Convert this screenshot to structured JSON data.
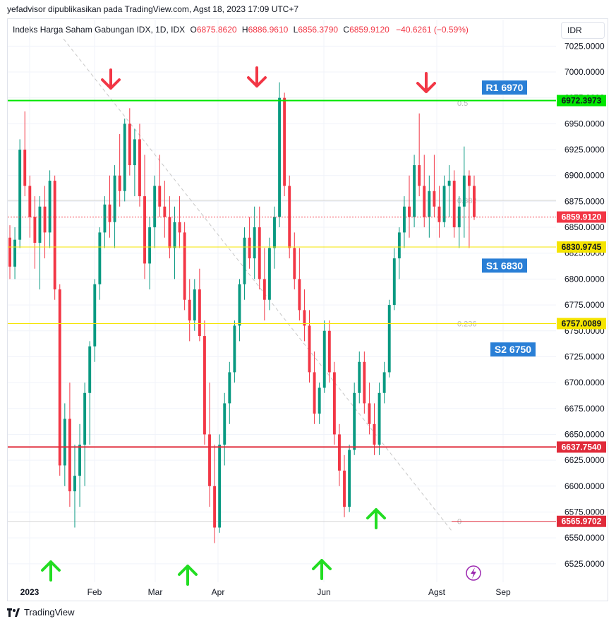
{
  "publisher": "yefadvisor dipublikasikan pada TradingView.com, Agst 18, 2023 17:09 UTC+7",
  "legend": {
    "symbol": "Indeks Harga Saham Gabungan IDX, 1D, IDX",
    "o_label": "O",
    "o_value": "6875.8620",
    "h_label": "H",
    "h_value": "6886.9610",
    "l_label": "L",
    "l_value": "6856.3790",
    "c_label": "C",
    "c_value": "6859.9120",
    "change": "−40.6261 (−0.59%)"
  },
  "currency": "IDR",
  "footer_brand": "TradingView",
  "colors": {
    "up": "#089981",
    "down": "#f23645",
    "green_line": "#00e600",
    "yellow_line": "#f5e400",
    "red_line": "#e02b3a",
    "label_blue": "#2a7fd6",
    "arrow_red": "#f23645",
    "arrow_green": "#22dd22"
  },
  "chart_data": {
    "type": "candlestick",
    "y_axis": {
      "ylim": [
        6510,
        7045
      ],
      "ticks": [
        "7025.0000",
        "7000.0000",
        "6975.0000",
        "6950.0000",
        "6925.0000",
        "6900.0000",
        "6875.0000",
        "6850.0000",
        "6825.0000",
        "6800.0000",
        "6775.0000",
        "6750.0000",
        "6725.0000",
        "6700.0000",
        "6675.0000",
        "6650.0000",
        "6625.0000",
        "6600.0000",
        "6575.0000",
        "6550.0000",
        "6525.0000"
      ]
    },
    "x_axis": {
      "ticks": [
        "2023",
        "Feb",
        "Mar",
        "Apr",
        "Jun",
        "Agst",
        "Sep"
      ]
    },
    "horizontal_lines": [
      {
        "name": "resistance",
        "value": 6972.3973,
        "label": "6972.3973",
        "color": "#00e600"
      },
      {
        "name": "current",
        "value": 6859.912,
        "label": "6859.9120",
        "color": "#f23645"
      },
      {
        "name": "support-1",
        "value": 6830.9745,
        "label": "6830.9745",
        "color": "#f5e400"
      },
      {
        "name": "support-2",
        "value": 6757.0089,
        "label": "6757.0089",
        "color": "#f5e400"
      },
      {
        "name": "support-3",
        "value": 6637.754,
        "label": "6637.7540",
        "color": "#e02b3a"
      },
      {
        "name": "fib-base",
        "value": 6565.9702,
        "label": "6565.9702",
        "color": "#e02b3a"
      }
    ],
    "fib_labels": [
      "0.5",
      "0.382",
      "0.236",
      "0"
    ],
    "annotations": [
      "R1 6970",
      "S1 6830",
      "S2 6750"
    ],
    "candles": [
      [
        6840,
        6852,
        6800,
        6812
      ],
      [
        6812,
        6850,
        6800,
        6838
      ],
      [
        6838,
        6935,
        6830,
        6925
      ],
      [
        6925,
        6962,
        6880,
        6890
      ],
      [
        6890,
        6900,
        6840,
        6860
      ],
      [
        6860,
        6880,
        6810,
        6835
      ],
      [
        6835,
        6880,
        6790,
        6870
      ],
      [
        6870,
        6890,
        6820,
        6845
      ],
      [
        6845,
        6905,
        6830,
        6895
      ],
      [
        6895,
        6900,
        6780,
        6790
      ],
      [
        6790,
        6795,
        6610,
        6620
      ],
      [
        6620,
        6680,
        6600,
        6665
      ],
      [
        6665,
        6700,
        6580,
        6595
      ],
      [
        6595,
        6640,
        6560,
        6610
      ],
      [
        6610,
        6660,
        6580,
        6640
      ],
      [
        6640,
        6700,
        6600,
        6690
      ],
      [
        6690,
        6740,
        6640,
        6735
      ],
      [
        6735,
        6800,
        6720,
        6795
      ],
      [
        6795,
        6850,
        6780,
        6845
      ],
      [
        6845,
        6880,
        6830,
        6872
      ],
      [
        6872,
        6900,
        6840,
        6855
      ],
      [
        6855,
        6910,
        6830,
        6900
      ],
      [
        6900,
        6940,
        6870,
        6885
      ],
      [
        6885,
        6955,
        6875,
        6950
      ],
      [
        6950,
        6965,
        6900,
        6910
      ],
      [
        6910,
        6945,
        6880,
        6935
      ],
      [
        6935,
        6950,
        6870,
        6880
      ],
      [
        6880,
        6920,
        6800,
        6815
      ],
      [
        6815,
        6860,
        6790,
        6850
      ],
      [
        6850,
        6900,
        6830,
        6890
      ],
      [
        6890,
        6920,
        6860,
        6870
      ],
      [
        6870,
        6895,
        6840,
        6860
      ],
      [
        6860,
        6880,
        6820,
        6830
      ],
      [
        6830,
        6870,
        6800,
        6855
      ],
      [
        6855,
        6880,
        6830,
        6845
      ],
      [
        6845,
        6855,
        6770,
        6780
      ],
      [
        6780,
        6800,
        6740,
        6760
      ],
      [
        6760,
        6800,
        6750,
        6790
      ],
      [
        6790,
        6810,
        6740,
        6745
      ],
      [
        6745,
        6760,
        6640,
        6650
      ],
      [
        6650,
        6700,
        6580,
        6600
      ],
      [
        6600,
        6640,
        6545,
        6560
      ],
      [
        6560,
        6650,
        6555,
        6640
      ],
      [
        6640,
        6690,
        6620,
        6680
      ],
      [
        6680,
        6720,
        6660,
        6710
      ],
      [
        6710,
        6760,
        6700,
        6755
      ],
      [
        6755,
        6800,
        6740,
        6795
      ],
      [
        6795,
        6850,
        6780,
        6840
      ],
      [
        6840,
        6860,
        6810,
        6820
      ],
      [
        6820,
        6870,
        6800,
        6850
      ],
      [
        6850,
        6870,
        6790,
        6800
      ],
      [
        6800,
        6830,
        6760,
        6780
      ],
      [
        6780,
        6840,
        6770,
        6830
      ],
      [
        6830,
        6870,
        6810,
        6860
      ],
      [
        6860,
        6990,
        6850,
        6975
      ],
      [
        6975,
        6980,
        6880,
        6890
      ],
      [
        6890,
        6900,
        6820,
        6830
      ],
      [
        6830,
        6845,
        6790,
        6800
      ],
      [
        6800,
        6830,
        6760,
        6770
      ],
      [
        6770,
        6790,
        6740,
        6755
      ],
      [
        6755,
        6770,
        6700,
        6710
      ],
      [
        6710,
        6730,
        6660,
        6670
      ],
      [
        6670,
        6700,
        6660,
        6695
      ],
      [
        6695,
        6760,
        6690,
        6750
      ],
      [
        6750,
        6760,
        6700,
        6710
      ],
      [
        6710,
        6720,
        6640,
        6650
      ],
      [
        6650,
        6660,
        6600,
        6615
      ],
      [
        6615,
        6630,
        6570,
        6580
      ],
      [
        6580,
        6640,
        6575,
        6635
      ],
      [
        6635,
        6700,
        6630,
        6690
      ],
      [
        6690,
        6730,
        6680,
        6720
      ],
      [
        6720,
        6730,
        6670,
        6680
      ],
      [
        6680,
        6700,
        6650,
        6660
      ],
      [
        6660,
        6680,
        6630,
        6640
      ],
      [
        6640,
        6700,
        6630,
        6690
      ],
      [
        6690,
        6720,
        6680,
        6710
      ],
      [
        6710,
        6780,
        6705,
        6775
      ],
      [
        6775,
        6830,
        6770,
        6820
      ],
      [
        6820,
        6850,
        6800,
        6845
      ],
      [
        6845,
        6880,
        6830,
        6870
      ],
      [
        6870,
        6900,
        6840,
        6860
      ],
      [
        6860,
        6920,
        6850,
        6910
      ],
      [
        6910,
        6960,
        6880,
        6890
      ],
      [
        6890,
        6920,
        6850,
        6860
      ],
      [
        6860,
        6900,
        6840,
        6885
      ],
      [
        6885,
        6920,
        6860,
        6870
      ],
      [
        6870,
        6890,
        6840,
        6855
      ],
      [
        6855,
        6900,
        6850,
        6890
      ],
      [
        6890,
        6910,
        6860,
        6895
      ],
      [
        6895,
        6905,
        6840,
        6850
      ],
      [
        6850,
        6880,
        6830,
        6870
      ],
      [
        6870,
        6928,
        6840,
        6900
      ],
      [
        6900,
        6905,
        6830,
        6890
      ],
      [
        6890,
        6900,
        6857,
        6860
      ]
    ]
  }
}
